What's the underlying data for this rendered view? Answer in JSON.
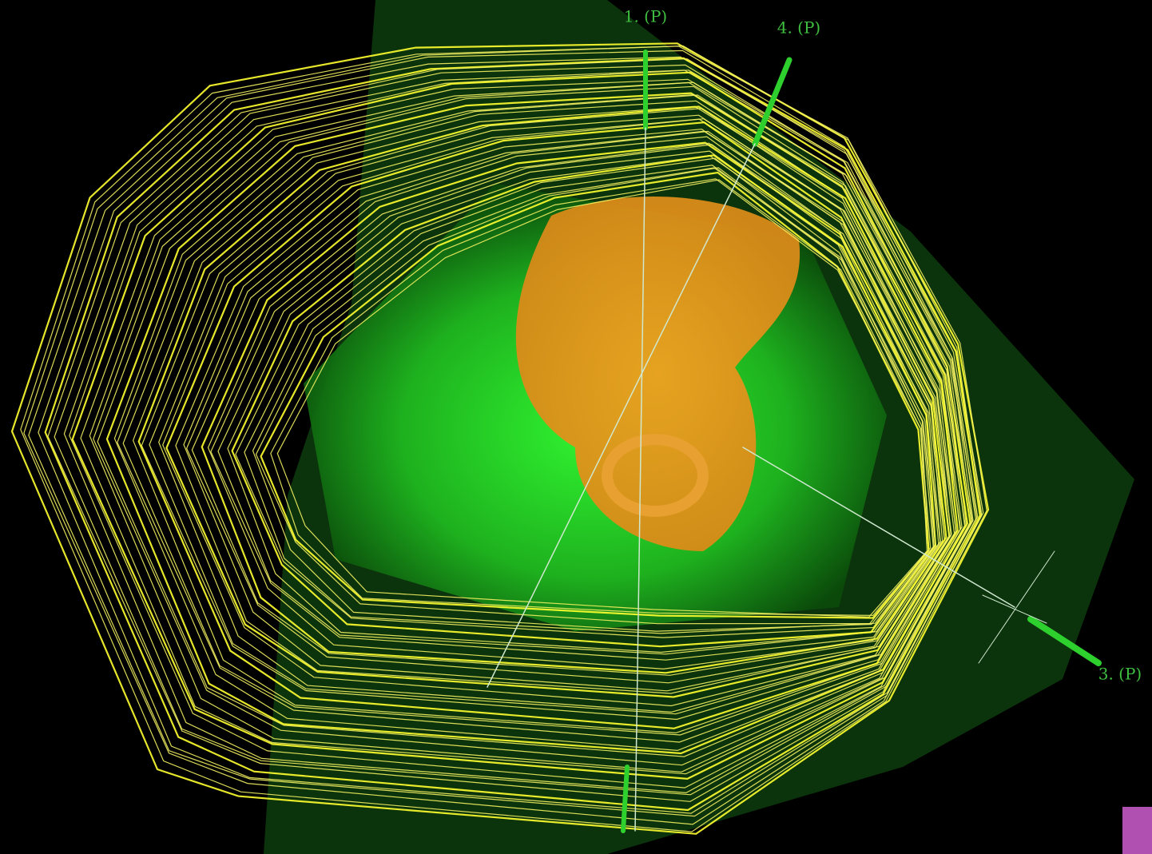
{
  "beams": [
    {
      "label": "1. (P)"
    },
    {
      "label": "4. (P)"
    },
    {
      "label": "3. (P)"
    }
  ]
}
